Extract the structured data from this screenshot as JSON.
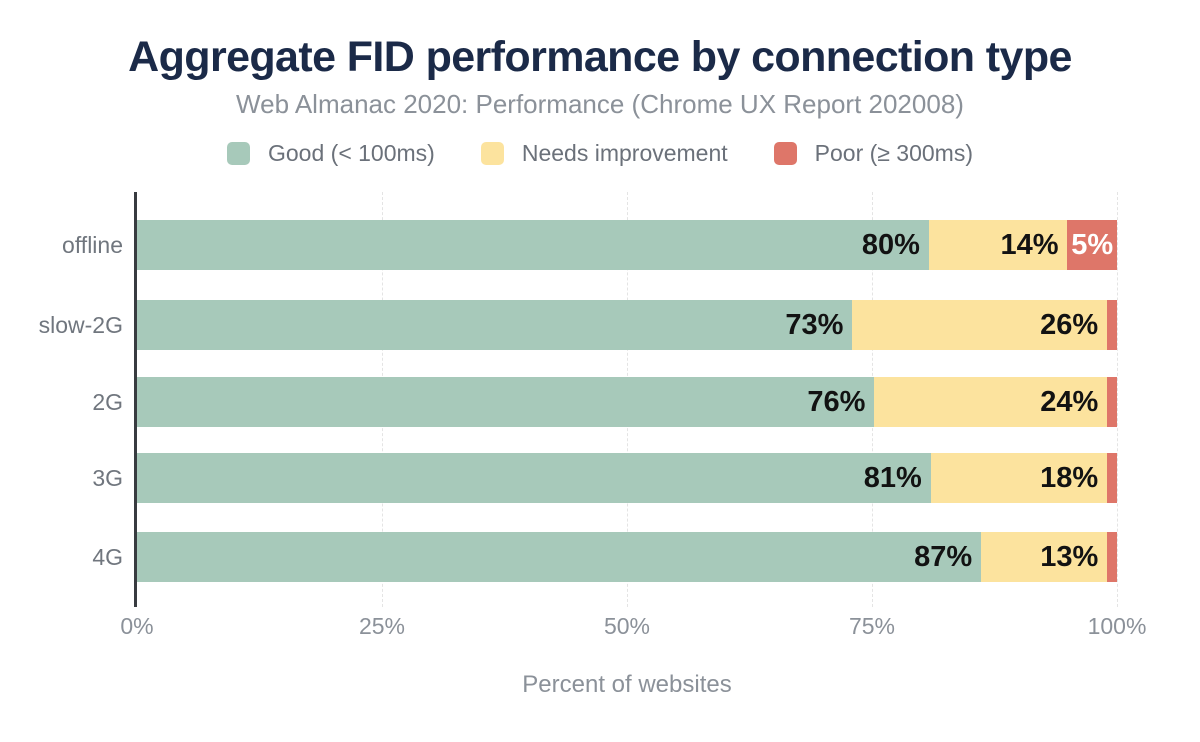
{
  "header": {
    "title": "Aggregate FID performance by connection type",
    "subtitle": "Web Almanac 2020: Performance (Chrome UX Report 202008)"
  },
  "legend": [
    {
      "label": "Good (< 100ms)",
      "color": "#a7c9ba"
    },
    {
      "label": "Needs improvement",
      "color": "#fce39e"
    },
    {
      "label": "Poor (≥ 300ms)",
      "color": "#de7669"
    }
  ],
  "colors": {
    "title": "#1b2a48",
    "muted_text": "#8b9199",
    "category_text": "#70767e",
    "legend_text": "#6b717a",
    "value_label": "#121212",
    "value_label_on_poor": "#ffffff",
    "axis_line": "#383b40",
    "gridline": "#e4e4e4",
    "good": "#a7c9ba",
    "needs_improvement": "#fce39e",
    "poor": "#de7669"
  },
  "chart_data": {
    "type": "bar",
    "orientation": "horizontal",
    "stacked": true,
    "title": "Aggregate FID performance by connection type",
    "subtitle": "Web Almanac 2020: Performance (Chrome UX Report 202008)",
    "categories": [
      "offline",
      "slow-2G",
      "2G",
      "3G",
      "4G"
    ],
    "series": [
      {
        "name": "Good (< 100ms)",
        "color": "#a7c9ba",
        "values": [
          80,
          73,
          76,
          81,
          87
        ]
      },
      {
        "name": "Needs improvement",
        "color": "#fce39e",
        "values": [
          14,
          26,
          24,
          18,
          13
        ]
      },
      {
        "name": "Poor (≥ 300ms)",
        "color": "#de7669",
        "values": [
          5,
          1,
          1,
          1,
          1
        ]
      }
    ],
    "value_label_format": "{v}%",
    "label_min_value_to_show": 5,
    "xlabel": "Percent of websites",
    "ylabel": "",
    "x_ticks": [
      "0%",
      "25%",
      "50%",
      "75%",
      "100%"
    ],
    "x_tick_values": [
      0,
      25,
      50,
      75,
      100
    ],
    "xlim": [
      0,
      100
    ],
    "grid": "vertical-dashed",
    "legend_position": "top"
  }
}
